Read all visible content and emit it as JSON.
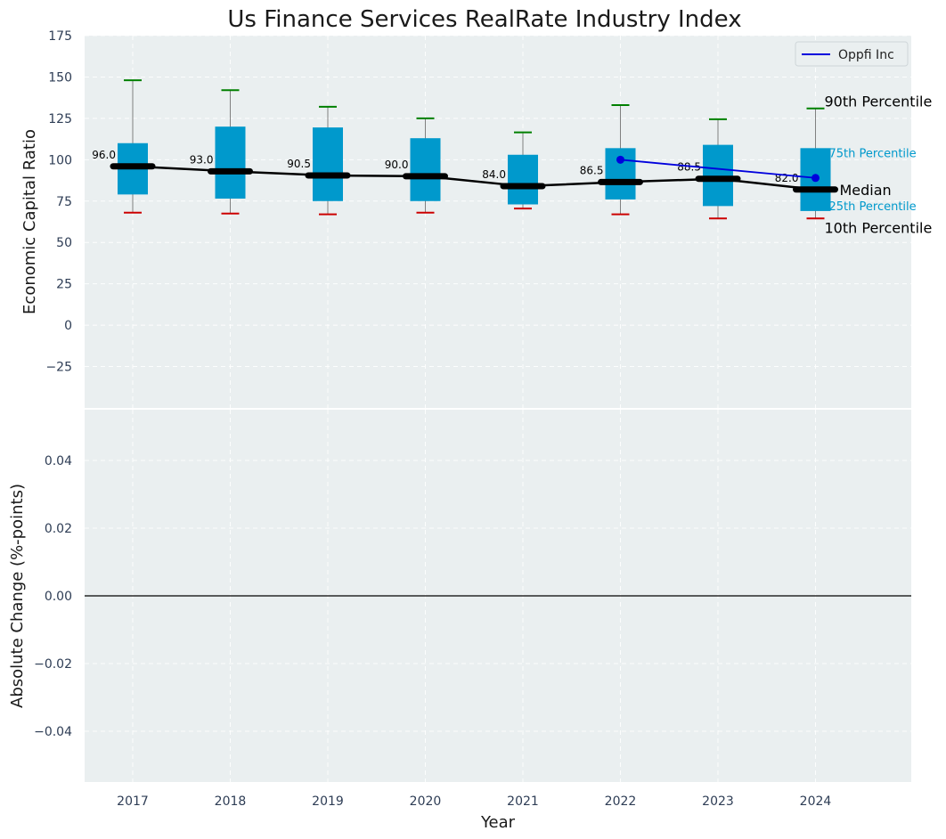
{
  "chart_data": [
    {
      "type": "box",
      "title": "Us Finance Services RealRate Industry Index",
      "ylabel": "Economic Capital Ratio",
      "ylim": [
        -50,
        175
      ],
      "yticks": [
        -25,
        0,
        25,
        50,
        75,
        100,
        125,
        150,
        175
      ],
      "categories": [
        "2017",
        "2018",
        "2019",
        "2020",
        "2021",
        "2022",
        "2023",
        "2024"
      ],
      "p10": [
        68,
        67.5,
        67,
        68,
        70.5,
        67,
        64.5,
        64.5
      ],
      "p25": [
        79,
        76.5,
        75,
        75,
        73,
        76,
        72,
        69
      ],
      "median": [
        96.0,
        93.0,
        90.5,
        90.0,
        84.0,
        86.5,
        88.5,
        82.0
      ],
      "median_labels": [
        "96.0",
        "93.0",
        "90.5",
        "90.0",
        "84.0",
        "86.5",
        "88.5",
        "82.0"
      ],
      "p75": [
        110,
        120,
        119.5,
        113,
        103,
        107,
        109,
        107
      ],
      "p90": [
        148,
        142,
        132,
        125,
        116.5,
        133,
        124.5,
        131
      ],
      "series": [
        {
          "name": "Oppfi Inc",
          "x": [
            "2022",
            "2023",
            "2024"
          ],
          "values": [
            100,
            94.5,
            89
          ]
        }
      ],
      "annotations": {
        "p90": "90th Percentile",
        "p75": "75th Percentile",
        "median": "Median",
        "p25": "25th Percentile",
        "p10": "10th Percentile"
      },
      "legend": "top-right",
      "grid": true
    },
    {
      "type": "line",
      "ylabel": "Absolute Change (%-points)",
      "xlabel": "Year",
      "ylim": [
        -0.055,
        0.055
      ],
      "yticks": [
        "−0.04",
        "−0.02",
        "0.00",
        "0.02",
        "0.04"
      ],
      "ytick_values": [
        -0.04,
        -0.02,
        0,
        0.02,
        0.04
      ],
      "categories": [
        "2017",
        "2018",
        "2019",
        "2020",
        "2021",
        "2022",
        "2023",
        "2024"
      ],
      "zero_line": true,
      "grid": true
    }
  ],
  "colors": {
    "box": "#0099cc",
    "whisker_top": "#008000",
    "whisker_bottom": "#cc0000",
    "median": "#000000",
    "company": "#0000dd",
    "panel": "#eaeff0"
  }
}
